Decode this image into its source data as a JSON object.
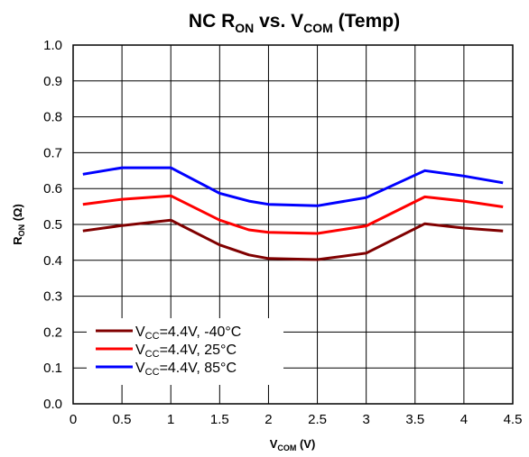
{
  "chart_data": {
    "type": "line",
    "title": {
      "main": "NC R",
      "sub1": "ON",
      "mid": " vs. V",
      "sub2": "COM",
      "tail": " (Temp)"
    },
    "xlabel": {
      "main": "V",
      "sub": "COM",
      "tail": " (V)"
    },
    "ylabel": {
      "main": "R",
      "sub": "ON",
      "tail": " (Ω)"
    },
    "xlim": [
      0,
      4.5
    ],
    "ylim": [
      0,
      1.0
    ],
    "xticks": [
      "0",
      "0.5",
      "1",
      "1.5",
      "2",
      "2.5",
      "3",
      "3.5",
      "4",
      "4.5"
    ],
    "yticks": [
      "0.0",
      "0.1",
      "0.2",
      "0.3",
      "0.4",
      "0.5",
      "0.6",
      "0.7",
      "0.8",
      "0.9",
      "1.0"
    ],
    "grid": true,
    "legend_position": "bottom-left",
    "series": [
      {
        "name": {
          "main": "V",
          "sub": "CC",
          "tail": "=4.4V, -40°C"
        },
        "color": "#800000",
        "x": [
          0.1,
          0.5,
          1.0,
          1.5,
          1.8,
          2.0,
          2.5,
          3.0,
          3.6,
          4.0,
          4.4
        ],
        "y": [
          0.482,
          0.497,
          0.512,
          0.443,
          0.415,
          0.405,
          0.402,
          0.42,
          0.502,
          0.49,
          0.482
        ]
      },
      {
        "name": {
          "main": "V",
          "sub": "CC",
          "tail": "=4.4V, 25°C"
        },
        "color": "#ff0000",
        "x": [
          0.1,
          0.5,
          1.0,
          1.5,
          1.8,
          2.0,
          2.5,
          3.0,
          3.6,
          4.0,
          4.4
        ],
        "y": [
          0.556,
          0.57,
          0.58,
          0.512,
          0.485,
          0.478,
          0.475,
          0.496,
          0.577,
          0.565,
          0.549
        ]
      },
      {
        "name": {
          "main": "V",
          "sub": "CC",
          "tail": "=4.4V,  85°C"
        },
        "color": "#0000ff",
        "x": [
          0.1,
          0.5,
          1.0,
          1.5,
          1.8,
          2.0,
          2.5,
          3.0,
          3.6,
          4.0,
          4.4
        ],
        "y": [
          0.64,
          0.658,
          0.658,
          0.587,
          0.565,
          0.556,
          0.552,
          0.575,
          0.65,
          0.635,
          0.616
        ]
      }
    ]
  }
}
